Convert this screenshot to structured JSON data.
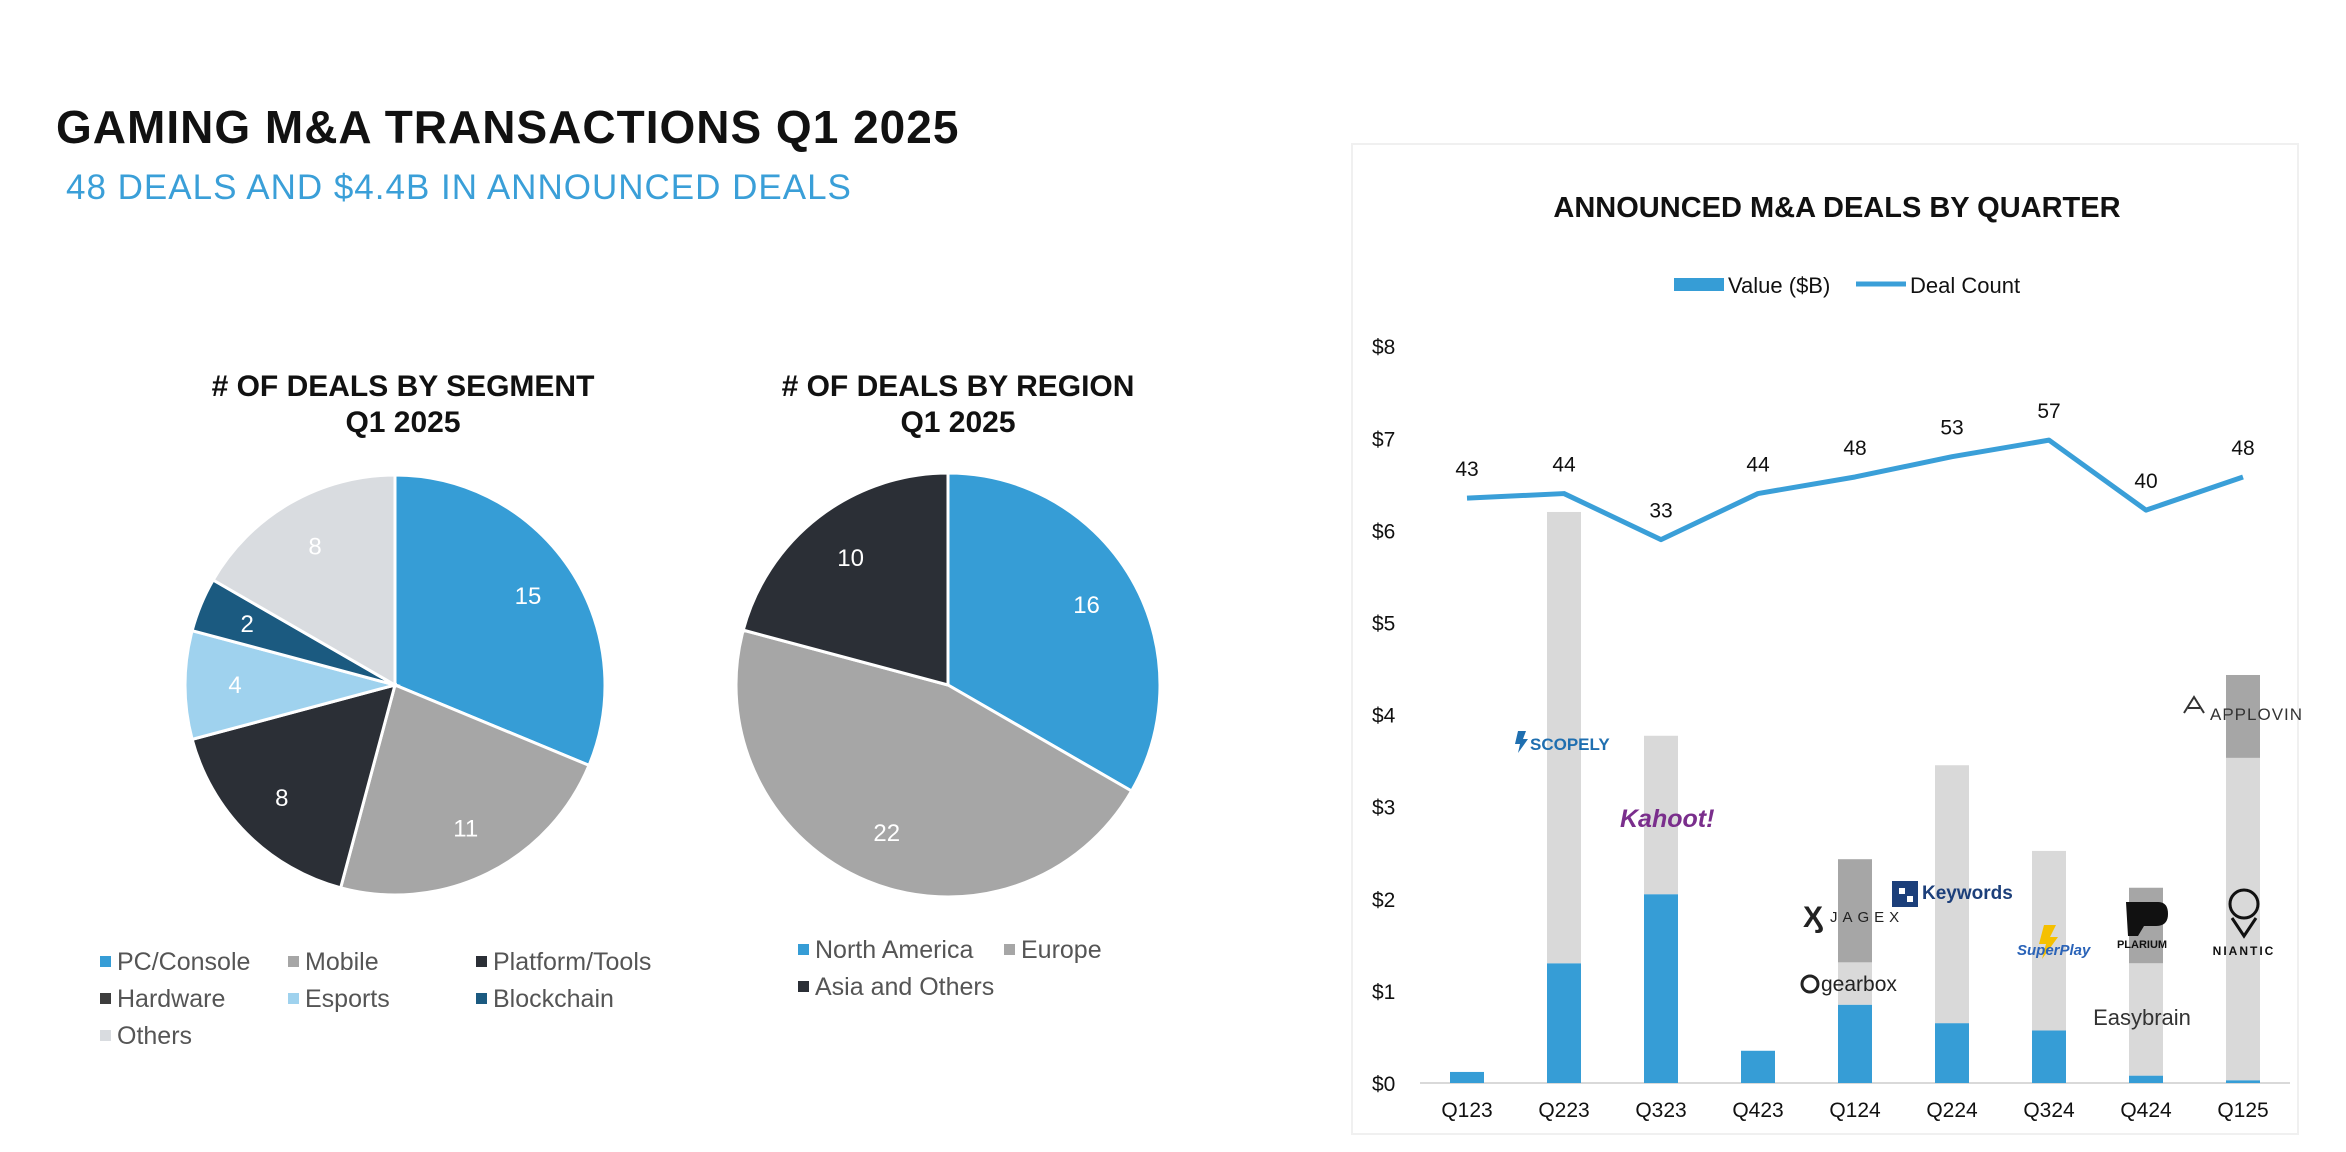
{
  "header": {
    "title": "GAMING M&A TRANSACTIONS Q1 2025",
    "subtitle": "48 DEALS AND $4.4B IN ANNOUNCED DEALS"
  },
  "colors": {
    "accent": "#3a9fd8",
    "pc_console": "#369dd6",
    "mobile": "#a6a6a6",
    "platform_tools": "#2b2f36",
    "hardware": "#3d3d3d",
    "esports": "#9fd2ee",
    "blockchain": "#1b5a80",
    "others": "#d9dce0",
    "north_america": "#369dd6",
    "europe": "#a6a6a6",
    "asia_others": "#2b2f36",
    "bar_blue": "#369dd6",
    "bar_light_gray": "#d9d9d9",
    "bar_mid_gray": "#a6a6a6",
    "line": "#3a9fd8"
  },
  "chart_data": [
    {
      "id": "segment",
      "type": "pie",
      "title_line1": "# OF DEALS BY SEGMENT",
      "title_line2": "Q1 2025",
      "slices": [
        {
          "label": "PC/Console",
          "value": 15,
          "color": "#369dd6"
        },
        {
          "label": "Mobile",
          "value": 11,
          "color": "#a6a6a6"
        },
        {
          "label": "Platform/Tools",
          "value": 8,
          "color": "#2b2f36"
        },
        {
          "label": "Esports",
          "value": 4,
          "color": "#9fd2ee"
        },
        {
          "label": "Blockchain",
          "value": 2,
          "color": "#1b5a80"
        },
        {
          "label": "Others",
          "value": 8,
          "color": "#d9dce0"
        }
      ],
      "legend": [
        {
          "label": "PC/Console",
          "color": "#369dd6"
        },
        {
          "label": "Mobile",
          "color": "#a6a6a6"
        },
        {
          "label": "Platform/Tools",
          "color": "#2b2f36"
        },
        {
          "label": "Hardware",
          "color": "#3d3d3d"
        },
        {
          "label": "Esports",
          "color": "#9fd2ee"
        },
        {
          "label": "Blockchain",
          "color": "#1b5a80"
        },
        {
          "label": "Others",
          "color": "#d9dce0"
        }
      ]
    },
    {
      "id": "region",
      "type": "pie",
      "title_line1": "# OF DEALS BY REGION",
      "title_line2": "Q1 2025",
      "slices": [
        {
          "label": "North America",
          "value": 16,
          "color": "#369dd6"
        },
        {
          "label": "Europe",
          "value": 22,
          "color": "#a6a6a6"
        },
        {
          "label": "Asia and Others",
          "value": 10,
          "color": "#2b2f36"
        }
      ],
      "legend": [
        {
          "label": "North America",
          "color": "#369dd6"
        },
        {
          "label": "Europe",
          "color": "#a6a6a6"
        },
        {
          "label": "Asia and Others",
          "color": "#2b2f36"
        }
      ]
    },
    {
      "id": "quarterly",
      "type": "bar",
      "title": "ANNOUNCED M&A DEALS BY QUARTER",
      "legend": {
        "bar": "Value ($B)",
        "line": "Deal Count"
      },
      "categories": [
        "Q123",
        "Q223",
        "Q323",
        "Q423",
        "Q124",
        "Q224",
        "Q324",
        "Q424",
        "Q125"
      ],
      "y_ticks": [
        "$0",
        "$1",
        "$2",
        "$3",
        "$4",
        "$5",
        "$6",
        "$7",
        "$8"
      ],
      "ylim": [
        0,
        8
      ],
      "stacks": [
        [
          {
            "value": 0.12,
            "color": "#369dd6"
          }
        ],
        [
          {
            "value": 1.3,
            "color": "#369dd6"
          },
          {
            "value": 4.9,
            "color": "#d9d9d9"
          }
        ],
        [
          {
            "value": 2.05,
            "color": "#369dd6"
          },
          {
            "value": 1.72,
            "color": "#d9d9d9"
          }
        ],
        [
          {
            "value": 0.35,
            "color": "#369dd6"
          }
        ],
        [
          {
            "value": 0.85,
            "color": "#369dd6"
          },
          {
            "value": 0.46,
            "color": "#d9d9d9"
          },
          {
            "value": 1.12,
            "color": "#a6a6a6"
          }
        ],
        [
          {
            "value": 0.65,
            "color": "#369dd6"
          },
          {
            "value": 2.8,
            "color": "#d9d9d9"
          }
        ],
        [
          {
            "value": 0.57,
            "color": "#369dd6"
          },
          {
            "value": 1.95,
            "color": "#d9d9d9"
          }
        ],
        [
          {
            "value": 0.08,
            "color": "#369dd6"
          },
          {
            "value": 1.22,
            "color": "#d9d9d9"
          },
          {
            "value": 0.82,
            "color": "#a6a6a6"
          }
        ],
        [
          {
            "value": 0.03,
            "color": "#369dd6"
          },
          {
            "value": 3.5,
            "color": "#d9d9d9"
          },
          {
            "value": 0.9,
            "color": "#a6a6a6"
          }
        ]
      ],
      "deal_count": [
        43,
        44,
        33,
        44,
        48,
        53,
        57,
        40,
        48
      ],
      "deal_count_axis_positions": [
        6.35,
        6.4,
        5.9,
        6.4,
        6.58,
        6.8,
        6.98,
        6.22,
        6.58
      ],
      "company_labels": [
        {
          "name": "SCOPELY",
          "icon": "scopely-logo"
        },
        {
          "name": "Kahoot!",
          "icon": "kahoot-logo"
        },
        {
          "name": "JAGEX",
          "icon": "jagex-logo"
        },
        {
          "name": "gearbox",
          "icon": "gearbox-logo"
        },
        {
          "name": "Keywords",
          "icon": "keywords-logo"
        },
        {
          "name": "SuperPlay",
          "icon": "superplay-logo"
        },
        {
          "name": "PLARIUM",
          "icon": "plarium-logo"
        },
        {
          "name": "Easybrain",
          "icon": "easybrain-logo"
        },
        {
          "name": "APPLOVIN",
          "icon": "applovin-logo"
        },
        {
          "name": "NIANTIC",
          "icon": "niantic-logo"
        }
      ]
    }
  ]
}
